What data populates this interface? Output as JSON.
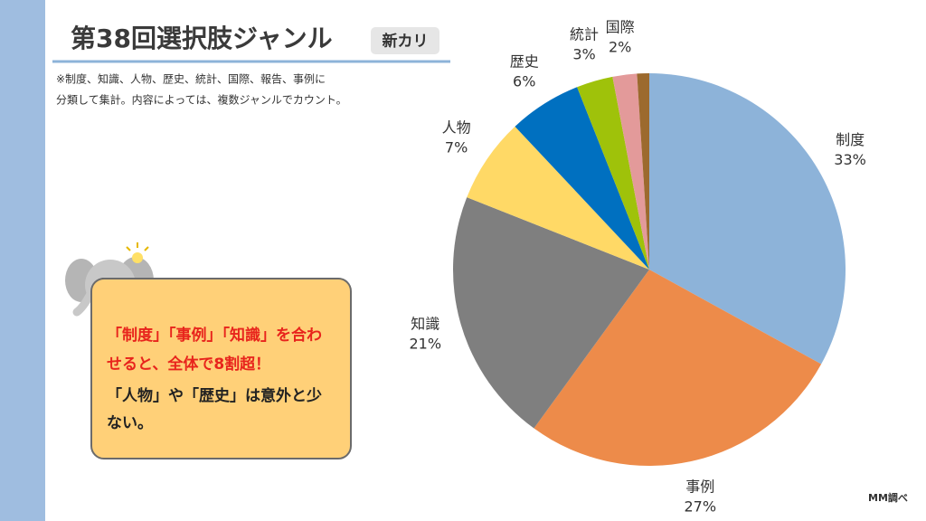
{
  "slide": {
    "title": "第38回選択肢ジャンル",
    "tag": "新カリ",
    "note_lines": [
      "※制度、知識、人物、歴史、統計、国際、報告、事例に",
      "分類して集計。内容によっては、複数ジャンルでカウント。"
    ],
    "callout_red_lines": [
      "「制度」「事例」「知識」を合わ",
      "せると、全体で8割超！"
    ],
    "callout_black_lines": [
      "「人物」や「歴史」は意外と少",
      "ない。"
    ],
    "source": "MM調べ"
  },
  "chart_data": {
    "type": "pie",
    "categories": [
      "制度",
      "事例",
      "知識",
      "人物",
      "歴史",
      "統計",
      "国際",
      null
    ],
    "values": [
      33,
      27,
      21,
      7,
      6,
      3,
      2,
      1
    ],
    "value_labels": [
      "33%",
      "27%",
      "21%",
      "7%",
      "6%",
      "3%",
      "2%",
      null
    ],
    "colors": [
      "#8db3d9",
      "#ed8b4a",
      "#7f7f7f",
      "#ffd966",
      "#0070c0",
      "#9fc20a",
      "#e39a9a",
      "#9c6a2e"
    ]
  }
}
